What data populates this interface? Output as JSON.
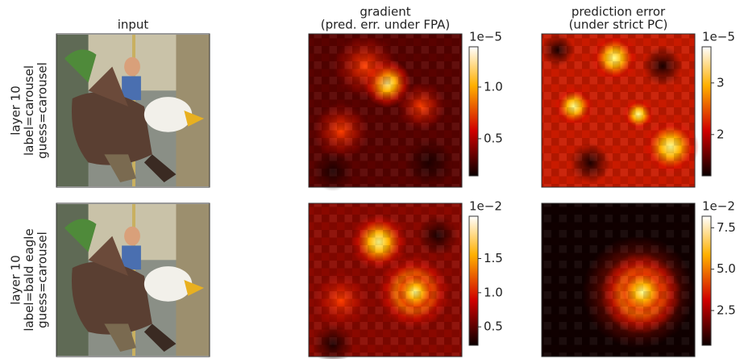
{
  "columns": [
    {
      "title": [
        "input"
      ]
    },
    {
      "title": [
        "gradient",
        "(pred. err. under FPA)"
      ]
    },
    {
      "title": [
        "prediction error",
        "(under strict PC)"
      ]
    }
  ],
  "rows": [
    {
      "label": [
        "layer 10",
        "label=carousel",
        "guess=carousel"
      ],
      "colorbars": [
        {
          "scale": "1e−5",
          "lim": [
            0.14,
            1.39
          ],
          "ticks": [
            0.5,
            {
              "value": 1.0,
              "label": "1.0"
            }
          ]
        },
        {
          "scale": "1e−5",
          "lim": [
            1.2,
            3.7
          ],
          "ticks": [
            2,
            3
          ]
        }
      ]
    },
    {
      "label": [
        "layer 10",
        "label=bald eagle",
        "guess=carousel"
      ],
      "colorbars": [
        {
          "scale": "1e−2",
          "lim": [
            0.23,
            2.12
          ],
          "ticks": [
            0.5,
            {
              "value": 1.0,
              "label": "1.0"
            },
            1.5
          ]
        },
        {
          "scale": "1e−2",
          "lim": [
            0.4,
            8.2
          ],
          "ticks": [
            2.5,
            {
              "value": 5.0,
              "label": "5.0"
            },
            7.5
          ]
        }
      ]
    }
  ]
}
